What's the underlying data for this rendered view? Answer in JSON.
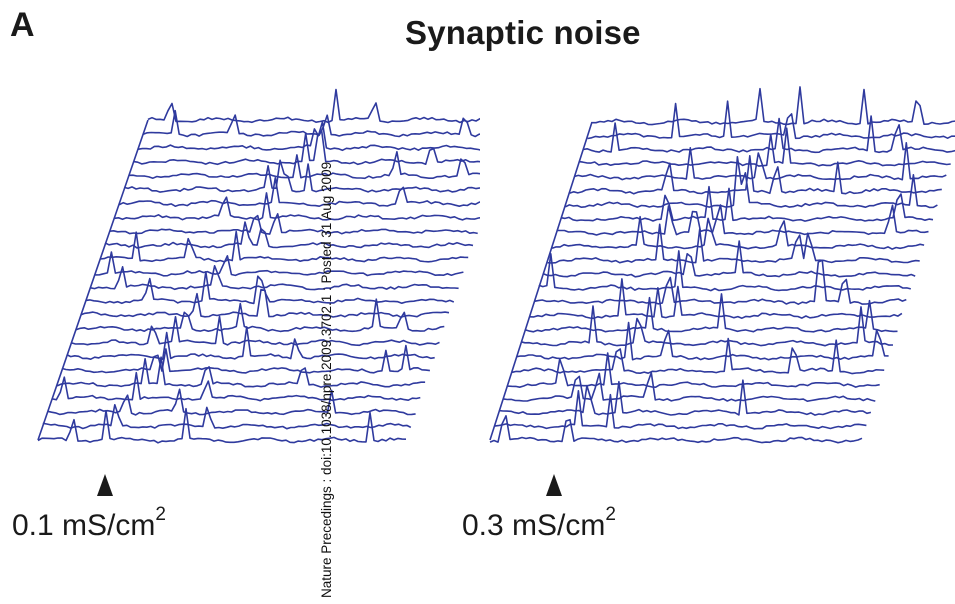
{
  "figure": {
    "panel_letter": "A",
    "title": "Synaptic noise",
    "watermark": "Nature Precedings : doi:10.1038/npre.2009.3702.1 : Posted 31 Aug 2009"
  },
  "panels": [
    {
      "conductance_value": "0.1 mS/cm",
      "conductance_exponent": "2"
    },
    {
      "conductance_value": "0.3 mS/cm",
      "conductance_exponent": "2"
    }
  ],
  "colors": {
    "trace": "#2f3a9e",
    "text": "#1a1a1a"
  }
}
